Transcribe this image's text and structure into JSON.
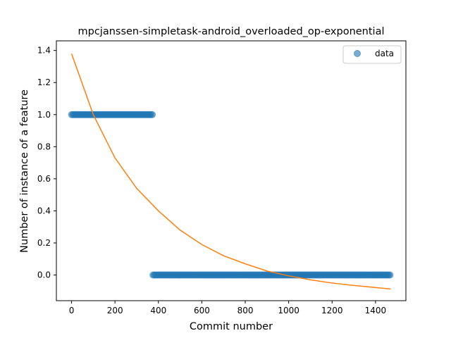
{
  "chart_data": {
    "type": "scatter",
    "title": "mpcjanssen-simpletask-android_overloaded_op-exponential",
    "xlabel": "Commit number",
    "ylabel": "Number of instance of a feature",
    "xlim": [
      -70,
      1540
    ],
    "ylim": [
      -0.16,
      1.46
    ],
    "x_ticks": [
      0,
      200,
      400,
      600,
      800,
      1000,
      1200,
      1400
    ],
    "y_ticks": [
      0.0,
      0.2,
      0.4,
      0.6,
      0.8,
      1.0,
      1.2,
      1.4
    ],
    "x_tick_labels": [
      "0",
      "200",
      "400",
      "600",
      "800",
      "1000",
      "1200",
      "1400"
    ],
    "y_tick_labels": [
      "0.0",
      "0.2",
      "0.4",
      "0.6",
      "0.8",
      "1.0",
      "1.2",
      "1.4"
    ],
    "grid": false,
    "legend": {
      "position": "top-right",
      "entries": [
        "data"
      ]
    },
    "series": [
      {
        "name": "data",
        "kind": "scatter",
        "color": "#1f77b4",
        "segments": [
          {
            "x_start": 0,
            "x_end": 375,
            "y": 1.0
          },
          {
            "x_start": 375,
            "x_end": 1470,
            "y": 0.0
          }
        ]
      },
      {
        "kind": "line",
        "color": "#ff7f0e",
        "x_range": [
          0,
          1470
        ],
        "points": [
          [
            0,
            1.38
          ],
          [
            100,
            1.0
          ],
          [
            200,
            0.73
          ],
          [
            300,
            0.54
          ],
          [
            400,
            0.4
          ],
          [
            500,
            0.28
          ],
          [
            600,
            0.19
          ],
          [
            700,
            0.12
          ],
          [
            800,
            0.07
          ],
          [
            900,
            0.025
          ],
          [
            1000,
            -0.005
          ],
          [
            1100,
            -0.03
          ],
          [
            1200,
            -0.05
          ],
          [
            1300,
            -0.065
          ],
          [
            1400,
            -0.078
          ],
          [
            1470,
            -0.087
          ]
        ]
      }
    ]
  }
}
